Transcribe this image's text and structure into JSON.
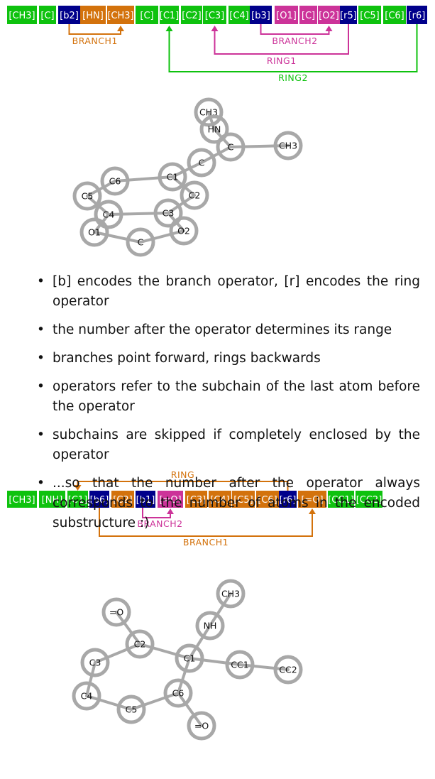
{
  "colors": {
    "green": "#0ec20e",
    "navy": "#00008b",
    "orange": "#d3720c",
    "magenta": "#cc3399",
    "node_stroke": "#a8a8a8",
    "bond": "#a8a8a8",
    "text": "#111111"
  },
  "top": {
    "tokens": [
      {
        "label": "[CH3]",
        "color": "green"
      },
      {
        "label": "[C]",
        "color": "green"
      },
      {
        "label": "[b2]",
        "color": "navy"
      },
      {
        "label": "[HN]",
        "color": "orange"
      },
      {
        "label": "[CH3]",
        "color": "orange"
      },
      {
        "label": "[C]",
        "color": "green"
      },
      {
        "label": "[C1]",
        "color": "green"
      },
      {
        "label": "[C2]",
        "color": "green"
      },
      {
        "label": "[C3]",
        "color": "green"
      },
      {
        "label": "[C4]",
        "color": "green"
      },
      {
        "label": "[b3]",
        "color": "navy"
      },
      {
        "label": "[O1]",
        "color": "magenta"
      },
      {
        "label": "[C]",
        "color": "magenta"
      },
      {
        "label": "[O2]",
        "color": "magenta"
      },
      {
        "label": "[r5]",
        "color": "navy"
      },
      {
        "label": "[C5]",
        "color": "green"
      },
      {
        "label": "[C6]",
        "color": "green"
      },
      {
        "label": "[r6]",
        "color": "navy"
      }
    ],
    "arrows": [
      {
        "label": "BRANCH1",
        "color": "orange",
        "from": 2,
        "to": 4
      },
      {
        "label": "BRANCH2",
        "color": "magenta",
        "from": 10,
        "to": 13
      },
      {
        "label": "RING1",
        "color": "magenta",
        "from": 14,
        "to": 8
      },
      {
        "label": "RING2",
        "color": "green",
        "from": 17,
        "to": 6
      }
    ]
  },
  "mol1": {
    "atoms": [
      "CH3",
      "HN",
      "C",
      "CH3",
      "C",
      "C1",
      "C2",
      "C6",
      "C5",
      "C4",
      "C3",
      "O1",
      "O2",
      "C"
    ]
  },
  "bullets": [
    "[b] encodes the branch operator, [r] encodes the ring operator",
    "the number after the operator determines its range",
    "branches point forward, rings backwards",
    "operators refer to the subchain of the last atom before the operator",
    "subchains are skipped if completely enclosed by the operator",
    "...so that the number after the operator always corresponds to the number of atoms in the encoded substructure :)"
  ],
  "bottom": {
    "tokens": [
      {
        "label": "[CH3]",
        "color": "green"
      },
      {
        "label": "[NH]",
        "color": "green"
      },
      {
        "label": "[C1]",
        "color": "green"
      },
      {
        "label": "[b6]",
        "color": "navy"
      },
      {
        "label": "[C2]",
        "color": "orange"
      },
      {
        "label": "[b1]",
        "color": "navy"
      },
      {
        "label": "[=O]",
        "color": "magenta"
      },
      {
        "label": "[C3]",
        "color": "orange"
      },
      {
        "label": "[C4]",
        "color": "orange"
      },
      {
        "label": "[C5]",
        "color": "orange"
      },
      {
        "label": "[C6]",
        "color": "orange"
      },
      {
        "label": "[r6]",
        "color": "navy"
      },
      {
        "label": "[=O]",
        "color": "orange"
      },
      {
        "label": "[CC1]",
        "color": "green"
      },
      {
        "label": "[CC2]",
        "color": "green"
      }
    ],
    "arrows": [
      {
        "label": "RING",
        "color": "orange",
        "from": 11,
        "to": 2
      },
      {
        "label": "BRANCH2",
        "color": "magenta",
        "from": 5,
        "to": 6
      },
      {
        "label": "BRANCH1",
        "color": "orange",
        "from": 3,
        "to": 12
      }
    ]
  },
  "mol2": {
    "atoms": [
      "CH3",
      "NH",
      "C1",
      "C2",
      "=O",
      "C3",
      "C4",
      "C5",
      "C6",
      "=O",
      "CC1",
      "CC2"
    ]
  }
}
